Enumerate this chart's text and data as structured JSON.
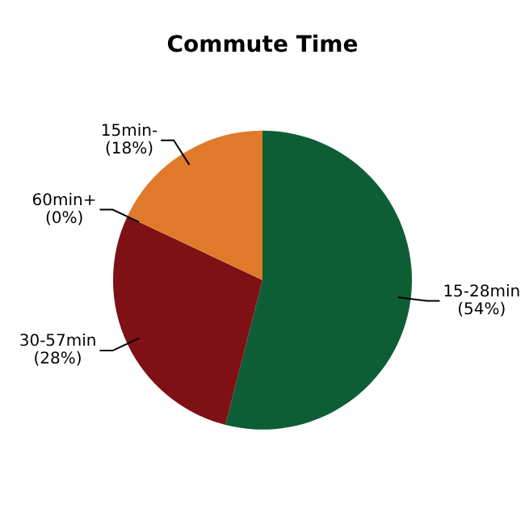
{
  "chart_data": {
    "type": "pie",
    "title": "Commute Time",
    "categories": [
      "15-28min",
      "30-57min",
      "60min+",
      "15min-"
    ],
    "values": [
      54,
      28,
      0,
      18
    ],
    "colors": [
      "#0e5e35",
      "#7e1016",
      "#9b1a20",
      "#e07a2a"
    ],
    "value_labels": [
      "(54%)",
      "(28%)",
      "(0%)",
      "(18%)"
    ],
    "legend": false
  }
}
